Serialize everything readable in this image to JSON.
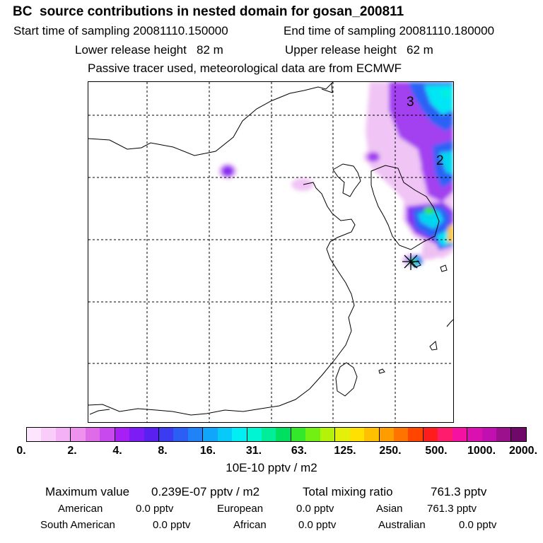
{
  "header": {
    "title": "BC  source contributions in nested domain for gosan_200811",
    "start_time": "Start time of sampling 20081110.150000",
    "end_time": "End time of sampling 20081110.180000",
    "lower_height": "Lower release height   82 m",
    "upper_height": "Upper release height   62 m",
    "tracer_note": "Passive tracer used, meteorological data are from ECMWF"
  },
  "map": {
    "contour_labels": [
      "3",
      "2"
    ],
    "receptor_marker": "star-marker"
  },
  "colorbar": {
    "colors": [
      "#fde6fd",
      "#f9ccf9",
      "#f5b1f5",
      "#ee92ee",
      "#e06be8",
      "#c84aee",
      "#a81ff6",
      "#7d1cf5",
      "#5a20f0",
      "#3b3cf2",
      "#2a5ef5",
      "#1f82f7",
      "#10a6fb",
      "#08caf9",
      "#00eef4",
      "#00f5d2",
      "#00ee9a",
      "#00e060",
      "#33e82a",
      "#72f012",
      "#b4f20a",
      "#e4f00a",
      "#ffe000",
      "#ffc000",
      "#ff9c00",
      "#ff7400",
      "#ff4500",
      "#ff1c1c",
      "#ff1c6c",
      "#f512a2",
      "#db10b0",
      "#c010b0",
      "#9c108e",
      "#70086a"
    ],
    "tick_labels": [
      "0.",
      "2.",
      "4.",
      "8.",
      "16.",
      "31.",
      "63.",
      "125.",
      "250.",
      "500.",
      "1000.",
      "2000."
    ],
    "unit": "10E-10 pptv / m2"
  },
  "stats": {
    "max_label": "Maximum value",
    "max_value": "0.239E-07 pptv / m2",
    "total_label": "Total mixing ratio",
    "total_value": "761.3 pptv",
    "regions": [
      {
        "name": "American",
        "value": "0.0 pptv"
      },
      {
        "name": "European",
        "value": "0.0 pptv"
      },
      {
        "name": "Asian",
        "value": "761.3 pptv"
      },
      {
        "name": "South American",
        "value": "0.0 pptv"
      },
      {
        "name": "African",
        "value": "0.0 pptv"
      },
      {
        "name": "Australian",
        "value": "0.0 pptv"
      }
    ]
  }
}
